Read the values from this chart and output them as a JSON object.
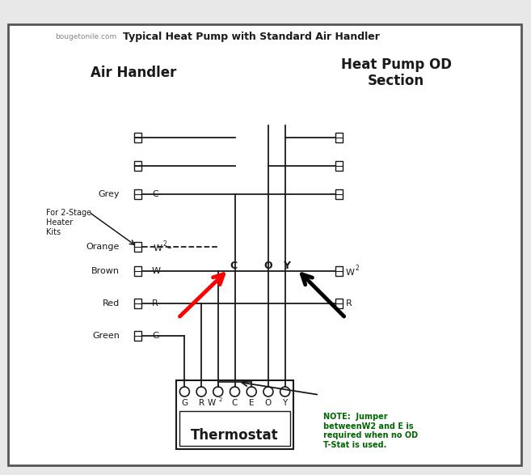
{
  "bg_color": "#e8e8e8",
  "border_color": "#555555",
  "line_color": "#1a1a1a",
  "note_color": "#006600",
  "thermostat_label": "Thermostat",
  "thermostat_terminals": [
    "G",
    "R",
    "W2",
    "C",
    "E",
    "O",
    "Y"
  ],
  "note_text": "NOTE:  Jumper\nbetweenW2 and E is\nrequired when no OD\nT-Stat is used.",
  "air_handler_label": "Air Handler",
  "heat_pump_label": "Heat Pump OD\nSection",
  "bottom_label": "Typical Heat Pump with Standard Air Handler",
  "bottom_source": "bougetonile.com"
}
